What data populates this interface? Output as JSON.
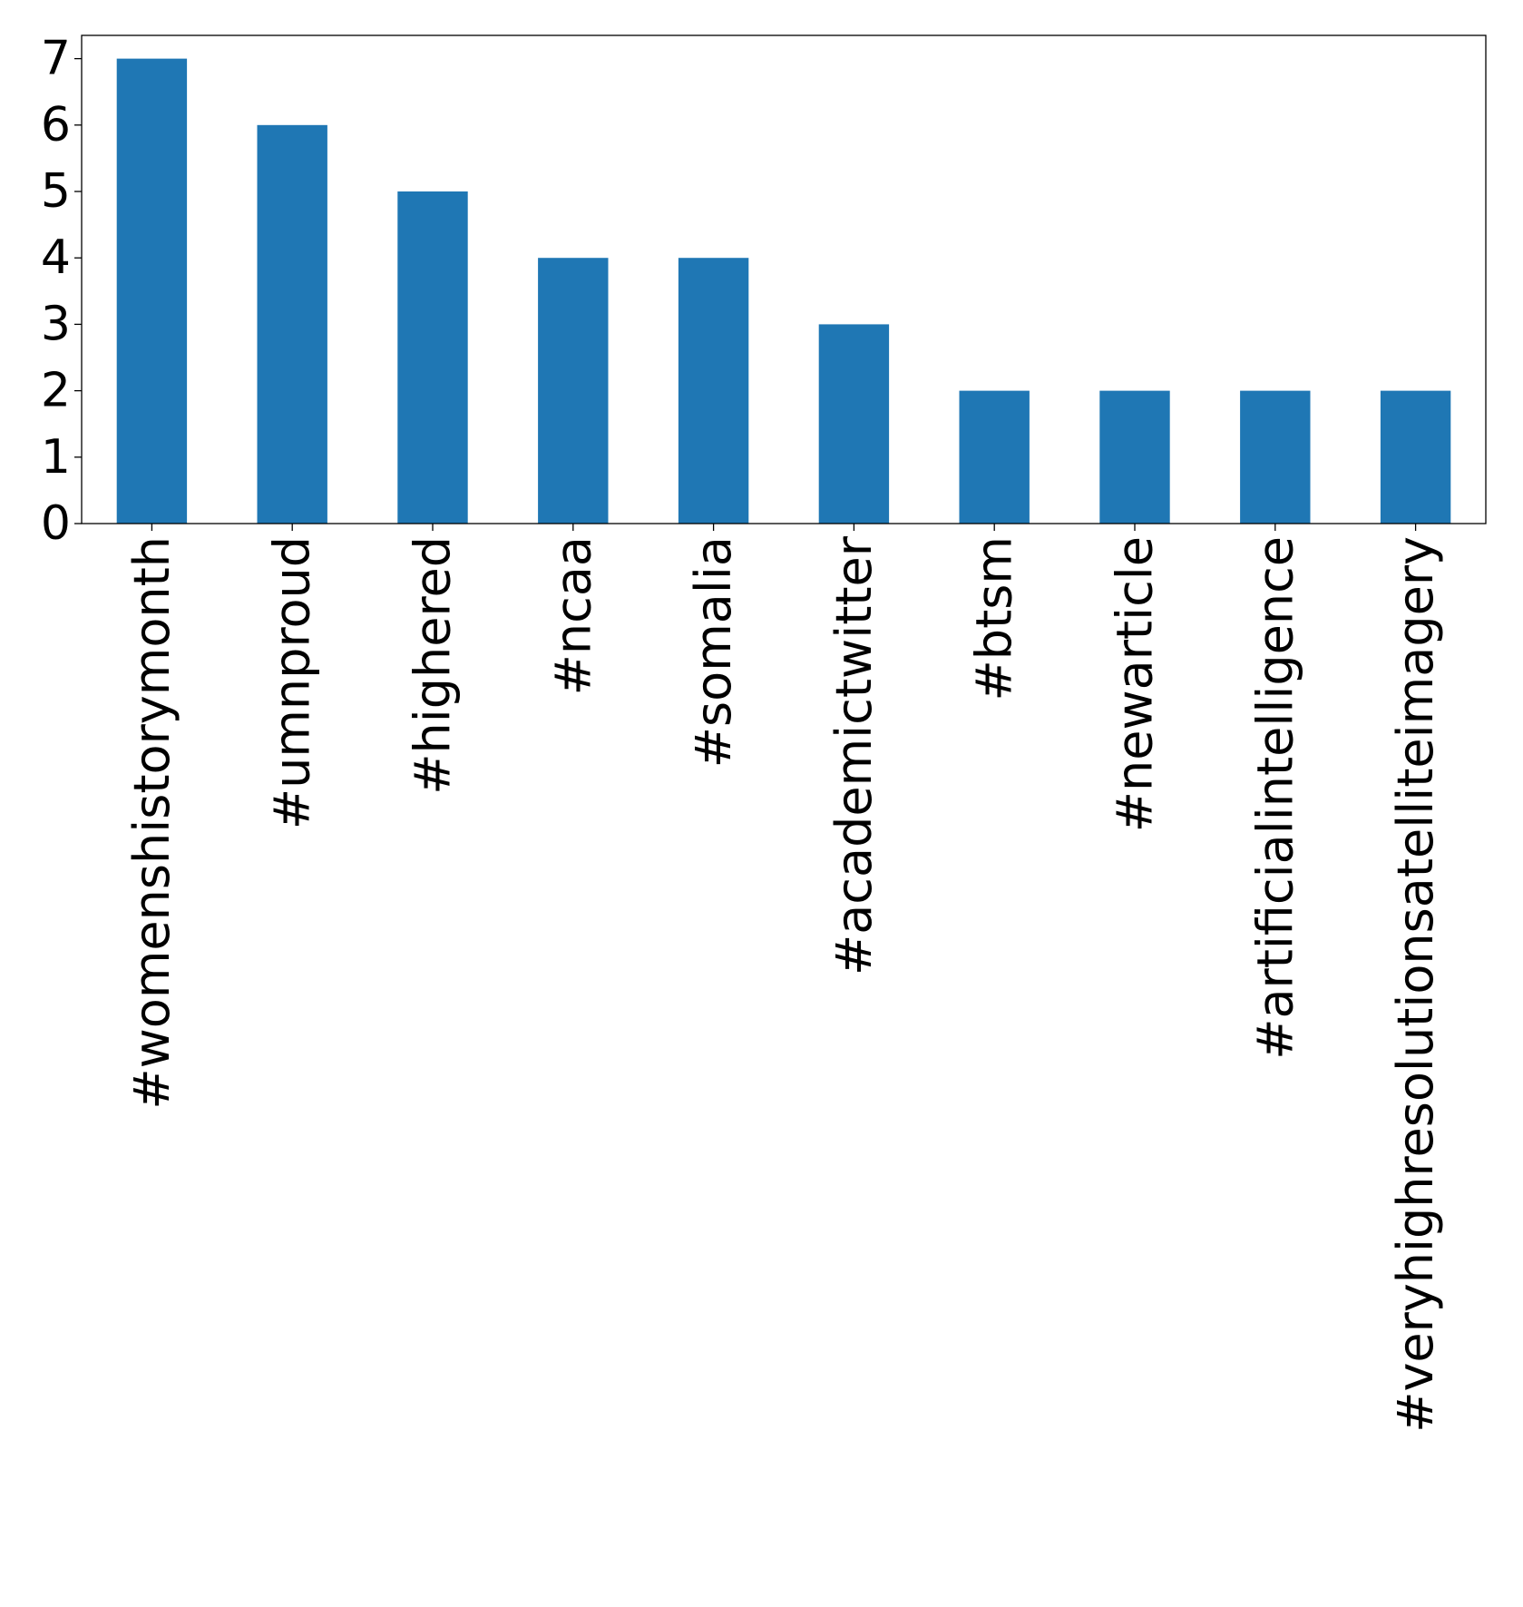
{
  "chart_data": {
    "type": "bar",
    "title": "",
    "xlabel": "",
    "ylabel": "",
    "categories": [
      "#womenshistorymonth",
      "#umnproud",
      "#highered",
      "#ncaa",
      "#somalia",
      "#academictwitter",
      "#btsm",
      "#newarticle",
      "#artificialintelligence",
      "#veryhighresolutionsatelliteimagery"
    ],
    "values": [
      7,
      6,
      5,
      4,
      4,
      3,
      2,
      2,
      2,
      2
    ],
    "ylim": [
      0,
      7.35
    ],
    "yticks": [
      "0",
      "1",
      "2",
      "3",
      "4",
      "5",
      "6",
      "7"
    ],
    "legend": "none",
    "grid": false,
    "colors": {
      "bar": "#1f77b4",
      "axis": "#000000",
      "text": "#000000",
      "background": "#ffffff"
    }
  }
}
